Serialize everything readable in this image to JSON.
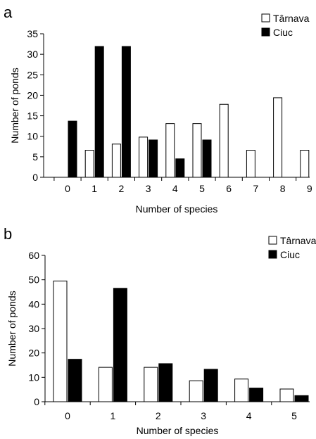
{
  "chart_data": [
    {
      "panel_label": "a",
      "type": "bar",
      "categories": [
        "0",
        "1",
        "2",
        "3",
        "4",
        "5",
        "6",
        "7",
        "8",
        "9"
      ],
      "series": [
        {
          "name": "Târnava",
          "color": "#ffffff",
          "values": [
            0,
            6.6,
            8.1,
            9.8,
            13.1,
            13.1,
            17.8,
            6.6,
            19.4,
            6.6
          ]
        },
        {
          "name": "Ciuc",
          "color": "#000000",
          "values": [
            13.7,
            31.9,
            31.9,
            9.1,
            4.5,
            9.1,
            0,
            0,
            0,
            0
          ]
        }
      ],
      "xlabel": "Number of species",
      "ylabel": "Number of ponds",
      "ylim": [
        0,
        35
      ],
      "yticks": [
        "0",
        "5",
        "10",
        "15",
        "20",
        "25",
        "30",
        "35"
      ],
      "legend_position": "top-right",
      "grid": false
    },
    {
      "panel_label": "b",
      "type": "bar",
      "categories": [
        "0",
        "1",
        "2",
        "3",
        "4",
        "5"
      ],
      "series": [
        {
          "name": "Târnava",
          "color": "#ffffff",
          "values": [
            49.5,
            14.1,
            14.1,
            8.6,
            9.3,
            5.2
          ]
        },
        {
          "name": "Ciuc",
          "color": "#000000",
          "values": [
            17.4,
            46.5,
            15.6,
            13.3,
            5.6,
            2.5
          ]
        }
      ],
      "xlabel": "Number of species",
      "ylabel": "Number of ponds",
      "ylim": [
        0,
        60
      ],
      "yticks": [
        "0",
        "10",
        "20",
        "30",
        "40",
        "50",
        "60"
      ],
      "legend_position": "top-right",
      "grid": false
    }
  ]
}
